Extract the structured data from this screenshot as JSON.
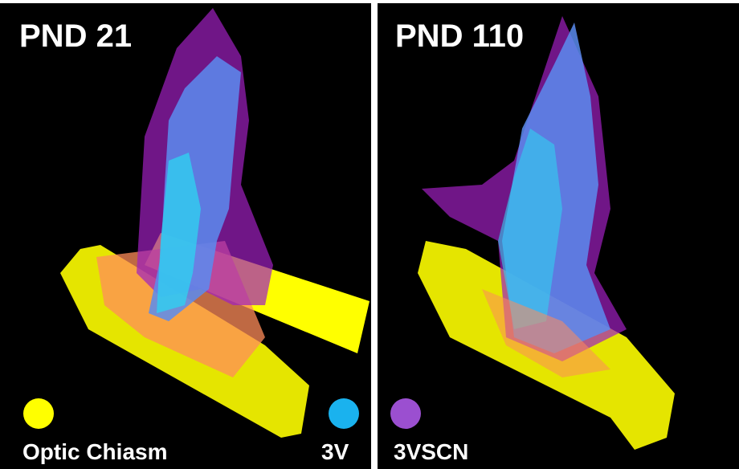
{
  "panels": [
    {
      "label": "PND 21"
    },
    {
      "label": "PND 110"
    }
  ],
  "legend": [
    {
      "label": "Optic Chiasm",
      "color": "#ffff00"
    },
    {
      "label": "3V",
      "color": "#1ab2ee"
    },
    {
      "label": "3VSCN",
      "color": "#9b4fd0"
    }
  ]
}
